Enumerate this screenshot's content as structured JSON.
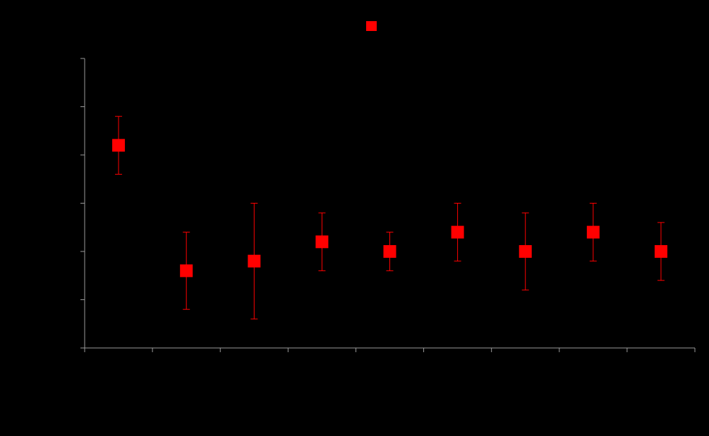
{
  "chart_data": {
    "type": "scatter",
    "categories": [
      null,
      null,
      null,
      null,
      null,
      null,
      null,
      null,
      null
    ],
    "series": [
      {
        "color": "#ff0000",
        "values": [
          4.2,
          1.6,
          1.8,
          2.2,
          2.0,
          2.4,
          2.0,
          2.4,
          2.0
        ],
        "errors": [
          0.6,
          0.8,
          1.2,
          0.6,
          0.4,
          0.6,
          0.8,
          0.6,
          0.6
        ]
      }
    ],
    "ylim": [
      0,
      6
    ],
    "yticks": [
      0,
      1,
      2,
      3,
      4,
      5,
      6
    ]
  }
}
